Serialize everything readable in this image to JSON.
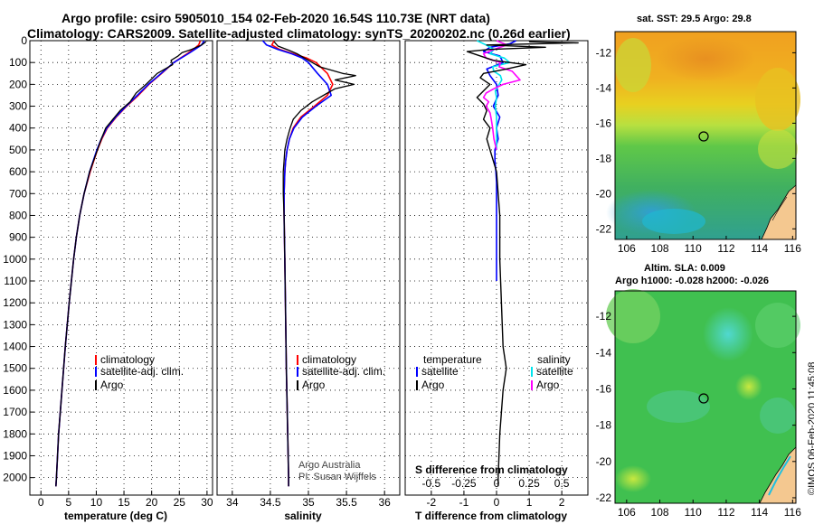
{
  "header": {
    "title_line1": "Argo profile: csiro 5905010_154 02-Feb-2020 16.54S 110.73E (NRT data)",
    "title_line2": "Climatology: CARS2009. Satellite-adjusted climatology: synTS_20200202.nc (0.26d earlier)"
  },
  "maps": {
    "sst_title": "sat. SST: 29.5 Argo: 29.8",
    "sla_title_line1": "Altim. SLA: 0.009",
    "sla_title_line2": "Argo h1000: -0.028 h2000: -0.026",
    "lon_ticks": [
      "106",
      "108",
      "110",
      "112",
      "114",
      "116"
    ],
    "lat_ticks": [
      "-12",
      "-14",
      "-16",
      "-18",
      "-20",
      "-22"
    ],
    "argo_position": {
      "lon": 110.73,
      "lat": -16.54
    }
  },
  "footer": {
    "stamp": "©IMOS 06-Feb-2020 11:45:08"
  },
  "panel_text": {
    "credit_line1": "Argo Australia",
    "credit_line2": "PI: Susan Wijffels",
    "s_diff_label": "S difference from climatology"
  },
  "colors": {
    "climatology": "#ff0000",
    "satellite_adj": "#0000ff",
    "argo": "#000000",
    "salinity_satellite": "#00e5ee",
    "salinity_argo": "#ff00ff"
  },
  "chart_data": [
    {
      "type": "line",
      "xlabel": "temperature (deg C)",
      "ylabel": "",
      "xlim": [
        -2,
        31
      ],
      "ylim": [
        2080,
        0
      ],
      "x_ticks": [
        0,
        5,
        10,
        15,
        20,
        25,
        30
      ],
      "y_ticks": [
        0,
        100,
        200,
        300,
        400,
        500,
        600,
        700,
        800,
        900,
        1000,
        1100,
        1200,
        1300,
        1400,
        1500,
        1600,
        1700,
        1800,
        1900,
        2000
      ],
      "grid": true,
      "legend": [
        "climatology",
        "satellite-adj. clim.",
        "Argo"
      ],
      "legend_position": "lower-right",
      "series": [
        {
          "name": "climatology",
          "depth": [
            0,
            20,
            40,
            60,
            80,
            100,
            150,
            200,
            250,
            300,
            350,
            400,
            450,
            500,
            600,
            700,
            800,
            900,
            1000,
            1200,
            1400,
            1600,
            1800,
            2000,
            2040
          ],
          "values": [
            28.8,
            28.5,
            27.5,
            26.4,
            25.2,
            24.0,
            21.8,
            19.5,
            17.6,
            15.5,
            13.6,
            12.0,
            11.0,
            10.2,
            8.9,
            7.8,
            7.0,
            6.4,
            5.9,
            5.1,
            4.4,
            3.8,
            3.2,
            2.8,
            2.7
          ]
        },
        {
          "name": "satellite-adj. clim.",
          "depth": [
            0,
            20,
            40,
            60,
            80,
            100,
            150,
            200,
            250,
            300,
            350,
            400,
            450,
            500,
            600,
            700,
            800,
            900,
            1000,
            1200,
            1400,
            1600,
            1800,
            2000,
            2040
          ],
          "values": [
            29.5,
            29.0,
            27.8,
            26.6,
            25.3,
            24.0,
            21.7,
            19.4,
            17.4,
            15.4,
            13.5,
            11.9,
            10.9,
            10.1,
            8.8,
            7.8,
            7.0,
            6.4,
            5.9,
            5.1,
            4.4,
            3.8,
            3.2,
            2.8,
            2.7
          ]
        },
        {
          "name": "Argo",
          "depth": [
            5,
            20,
            40,
            55,
            70,
            90,
            110,
            150,
            200,
            240,
            280,
            320,
            360,
            400,
            450,
            500,
            600,
            700,
            800,
            900,
            1000,
            1200,
            1400,
            1600,
            1800,
            2000,
            2040
          ],
          "values": [
            29.8,
            29.0,
            27.2,
            25.5,
            24.8,
            23.5,
            23.8,
            21.0,
            19.0,
            17.2,
            16.1,
            14.3,
            13.0,
            11.7,
            10.9,
            10.2,
            8.8,
            7.8,
            7.0,
            6.4,
            5.9,
            5.1,
            4.4,
            3.8,
            3.2,
            2.8,
            2.7
          ]
        }
      ]
    },
    {
      "type": "line",
      "xlabel": "salinity",
      "xlim": [
        33.8,
        36.2
      ],
      "ylim": [
        2080,
        0
      ],
      "x_ticks": [
        34,
        34.5,
        35,
        35.5,
        36
      ],
      "grid": true,
      "legend": [
        "climatology",
        "satellite-adj. clim.",
        "Argo"
      ],
      "legend_position": "lower-right",
      "series": [
        {
          "name": "climatology",
          "depth": [
            0,
            20,
            40,
            60,
            80,
            100,
            150,
            200,
            250,
            300,
            350,
            400,
            450,
            500,
            550,
            600,
            700,
            800,
            1000,
            1500,
            2000,
            2040
          ],
          "values": [
            34.55,
            34.52,
            34.62,
            34.8,
            34.98,
            35.1,
            35.25,
            35.32,
            35.25,
            35.08,
            34.9,
            34.8,
            34.75,
            34.72,
            34.7,
            34.69,
            34.68,
            34.68,
            34.69,
            34.71,
            34.74,
            34.74
          ]
        },
        {
          "name": "satellite-adj. clim.",
          "depth": [
            0,
            20,
            40,
            60,
            80,
            100,
            150,
            200,
            250,
            300,
            350,
            400,
            450,
            500,
            550,
            600,
            700,
            800,
            1000,
            1500,
            2000,
            2040
          ],
          "values": [
            34.4,
            34.45,
            34.6,
            34.78,
            34.92,
            35.0,
            35.12,
            35.25,
            35.3,
            35.1,
            34.92,
            34.81,
            34.75,
            34.72,
            34.7,
            34.69,
            34.68,
            34.68,
            34.69,
            34.71,
            34.74,
            34.74
          ]
        },
        {
          "name": "Argo",
          "depth": [
            5,
            25,
            45,
            60,
            80,
            100,
            120,
            150,
            160,
            180,
            200,
            220,
            240,
            280,
            320,
            360,
            400,
            450,
            500,
            550,
            600,
            700,
            800,
            1000,
            1500,
            2000,
            2040
          ],
          "values": [
            34.55,
            34.6,
            34.75,
            34.85,
            34.95,
            35.05,
            35.15,
            35.45,
            35.62,
            35.35,
            35.6,
            35.35,
            35.25,
            35.05,
            34.9,
            34.8,
            34.76,
            34.72,
            34.69,
            34.68,
            34.67,
            34.67,
            34.68,
            34.69,
            34.71,
            34.74,
            34.74
          ]
        }
      ]
    },
    {
      "type": "line",
      "xlabel": "T difference from climatology",
      "x2label": "S difference from climatology",
      "xlim": [
        -2.8,
        2.8
      ],
      "x2lim": [
        -0.7,
        0.7
      ],
      "ylim": [
        2080,
        0
      ],
      "x_ticks": [
        -2,
        -1,
        0,
        1,
        2
      ],
      "x2_ticks": [
        "-0.5",
        "-0.25",
        "0",
        "0.25",
        "0.5"
      ],
      "grid": true,
      "legend_left_title": "temperature",
      "legend_right_title": "salinity",
      "legend": [
        "satellite",
        "Argo"
      ],
      "legend_position": "lower",
      "series": [
        {
          "name": "T satellite",
          "depth": [
            0,
            15,
            30,
            50,
            70,
            100,
            130,
            160,
            200,
            250,
            300,
            350,
            400,
            450,
            500,
            550,
            600,
            650,
            700,
            800,
            900,
            1000,
            1100
          ],
          "values": [
            0.6,
            0.4,
            -0.2,
            -0.4,
            0.1,
            0.2,
            -0.3,
            -0.2,
            0.0,
            0.05,
            -0.1,
            0.1,
            0.0,
            0.05,
            -0.05,
            -0.05,
            -0.02,
            0.0,
            0.0,
            0.0,
            0.0,
            0.0,
            0.0
          ]
        },
        {
          "name": "T Argo",
          "depth": [
            5,
            10,
            20,
            30,
            40,
            50,
            70,
            90,
            110,
            130,
            150,
            170,
            200,
            230,
            260,
            290,
            320,
            360,
            400,
            450,
            500,
            600,
            800,
            1000,
            1200,
            1400,
            1500,
            1600,
            1800,
            2000,
            2040
          ],
          "values": [
            1.0,
            2.5,
            -0.3,
            1.5,
            -0.2,
            -0.9,
            -0.5,
            -0.1,
            0.9,
            0.3,
            -0.4,
            -0.5,
            -0.2,
            -0.4,
            -0.6,
            -0.4,
            -0.3,
            -0.4,
            -0.2,
            -0.3,
            -0.2,
            0.0,
            0.1,
            0.1,
            0.15,
            0.2,
            0.3,
            0.2,
            0.1,
            0.05,
            0.05
          ]
        },
        {
          "name": "S satellite",
          "depth": [
            0,
            20,
            40,
            60,
            80,
            100,
            120,
            140,
            160,
            180,
            200,
            230,
            260,
            300,
            350,
            400,
            450,
            500
          ],
          "values": [
            -0.15,
            -0.08,
            -0.02,
            -0.05,
            0.06,
            0.1,
            -0.03,
            -0.02,
            0.03,
            0.04,
            0.02,
            -0.01,
            0.0,
            -0.01,
            0.0,
            0.0,
            0.0,
            0.0
          ]
        },
        {
          "name": "S Argo",
          "depth": [
            0,
            20,
            40,
            60,
            80,
            100,
            120,
            140,
            160,
            180,
            200,
            220,
            240,
            260,
            280,
            300,
            330,
            360,
            400,
            450,
            500
          ],
          "values": [
            0.0,
            0.08,
            -0.02,
            -0.1,
            -0.08,
            0.03,
            0.02,
            0.12,
            0.15,
            0.18,
            0.05,
            -0.02,
            -0.08,
            -0.1,
            -0.06,
            -0.08,
            -0.05,
            -0.04,
            -0.03,
            -0.02,
            0.0
          ]
        }
      ]
    }
  ]
}
